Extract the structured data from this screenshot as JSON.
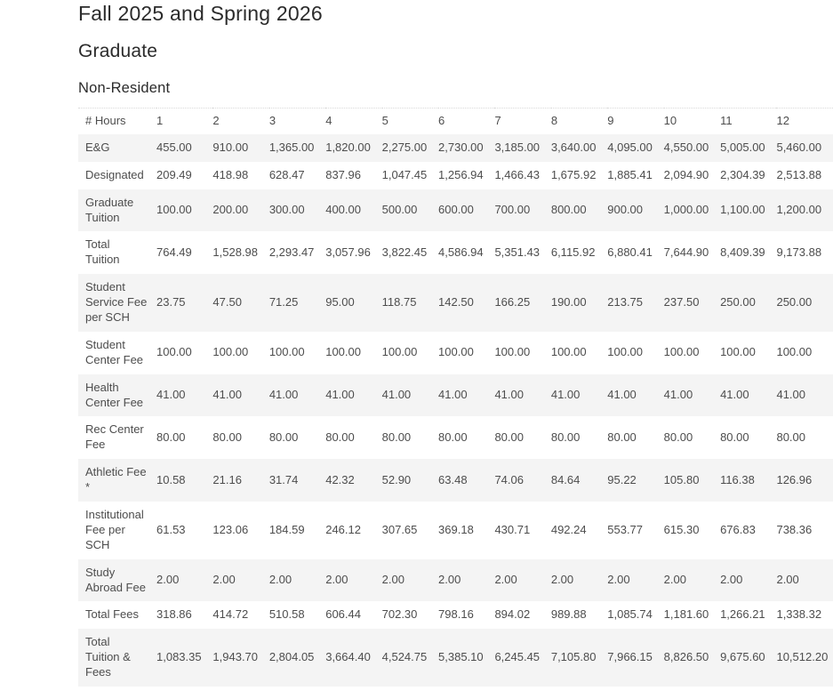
{
  "page": {
    "title": "Fall 2025 and Spring 2026",
    "subtitle": "Graduate",
    "section": "Non-Resident"
  },
  "colors": {
    "heading": "#2b2b2b",
    "text": "#4d4d4d",
    "row_stripe": "#f4f4f4",
    "table_top_border": "#d9d9d9",
    "background": "#ffffff"
  },
  "table": {
    "header": [
      "# Hours",
      "1",
      "2",
      "3",
      "4",
      "5",
      "6",
      "7",
      "8",
      "9",
      "10",
      "11",
      "12"
    ],
    "rows": [
      {
        "label": "E&G",
        "values": [
          "455.00",
          "910.00",
          "1,365.00",
          "1,820.00",
          "2,275.00",
          "2,730.00",
          "3,185.00",
          "3,640.00",
          "4,095.00",
          "4,550.00",
          "5,005.00",
          "5,460.00"
        ]
      },
      {
        "label": "Designated",
        "values": [
          "209.49",
          "418.98",
          "628.47",
          "837.96",
          "1,047.45",
          "1,256.94",
          "1,466.43",
          "1,675.92",
          "1,885.41",
          "2,094.90",
          "2,304.39",
          "2,513.88"
        ]
      },
      {
        "label": "Graduate\nTuition",
        "values": [
          "100.00",
          "200.00",
          "300.00",
          "400.00",
          "500.00",
          "600.00",
          "700.00",
          "800.00",
          "900.00",
          "1,000.00",
          "1,100.00",
          "1,200.00"
        ]
      },
      {
        "label": "Total\nTuition",
        "values": [
          "764.49",
          "1,528.98",
          "2,293.47",
          "3,057.96",
          "3,822.45",
          "4,586.94",
          "5,351.43",
          "6,115.92",
          "6,880.41",
          "7,644.90",
          "8,409.39",
          "9,173.88"
        ]
      },
      {
        "label": "Student\nService Fee\nper SCH",
        "values": [
          "23.75",
          "47.50",
          "71.25",
          "95.00",
          "118.75",
          "142.50",
          "166.25",
          "190.00",
          "213.75",
          "237.50",
          "250.00",
          "250.00"
        ]
      },
      {
        "label": "Student\nCenter Fee",
        "values": [
          "100.00",
          "100.00",
          "100.00",
          "100.00",
          "100.00",
          "100.00",
          "100.00",
          "100.00",
          "100.00",
          "100.00",
          "100.00",
          "100.00"
        ]
      },
      {
        "label": "Health\nCenter Fee",
        "values": [
          "41.00",
          "41.00",
          "41.00",
          "41.00",
          "41.00",
          "41.00",
          "41.00",
          "41.00",
          "41.00",
          "41.00",
          "41.00",
          "41.00"
        ]
      },
      {
        "label": "Rec Center\nFee",
        "values": [
          "80.00",
          "80.00",
          "80.00",
          "80.00",
          "80.00",
          "80.00",
          "80.00",
          "80.00",
          "80.00",
          "80.00",
          "80.00",
          "80.00"
        ]
      },
      {
        "label": "Athletic Fee\n*",
        "values": [
          "10.58",
          "21.16",
          "31.74",
          "42.32",
          "52.90",
          "63.48",
          "74.06",
          "84.64",
          "95.22",
          "105.80",
          "116.38",
          "126.96"
        ]
      },
      {
        "label": "Institutional\nFee per\nSCH",
        "values": [
          "61.53",
          "123.06",
          "184.59",
          "246.12",
          "307.65",
          "369.18",
          "430.71",
          "492.24",
          "553.77",
          "615.30",
          "676.83",
          "738.36"
        ]
      },
      {
        "label": "Study\nAbroad Fee",
        "values": [
          "2.00",
          "2.00",
          "2.00",
          "2.00",
          "2.00",
          "2.00",
          "2.00",
          "2.00",
          "2.00",
          "2.00",
          "2.00",
          "2.00"
        ]
      },
      {
        "label": "Total Fees",
        "values": [
          "318.86",
          "414.72",
          "510.58",
          "606.44",
          "702.30",
          "798.16",
          "894.02",
          "989.88",
          "1,085.74",
          "1,181.60",
          "1,266.21",
          "1,338.32"
        ]
      },
      {
        "label": "Total\nTuition &\nFees",
        "values": [
          "1,083.35",
          "1,943.70",
          "2,804.05",
          "3,664.40",
          "4,524.75",
          "5,385.10",
          "6,245.45",
          "7,105.80",
          "7,966.15",
          "8,826.50",
          "9,675.60",
          "10,512.20"
        ]
      }
    ]
  }
}
